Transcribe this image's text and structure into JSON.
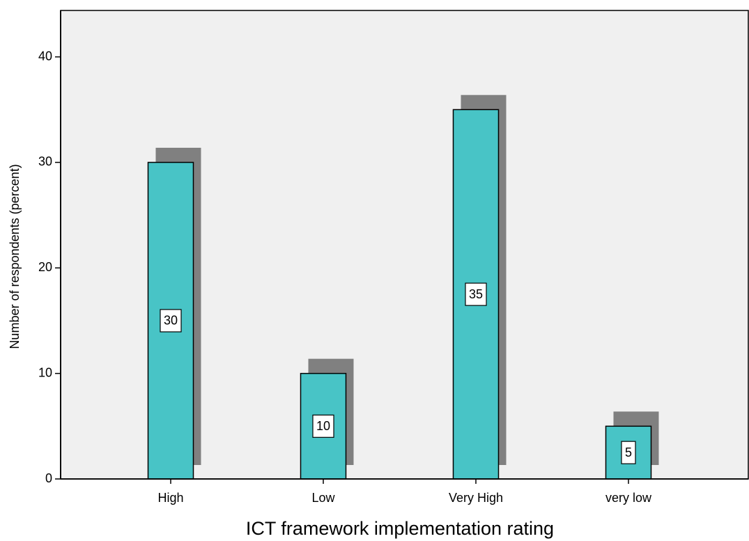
{
  "chart_data": {
    "type": "bar",
    "x_label": "ICT framework implementation rating",
    "y_label": "Number of respondents (percent)",
    "categories": [
      "High",
      "Low",
      "Very High",
      "very low"
    ],
    "values": [
      30,
      10,
      35,
      5
    ],
    "color": "#48c4c6",
    "shadow_color": "#808080",
    "ylim": [
      0,
      44.4
    ],
    "yticks": [
      0,
      10,
      20,
      30,
      40
    ],
    "grid": false
  }
}
